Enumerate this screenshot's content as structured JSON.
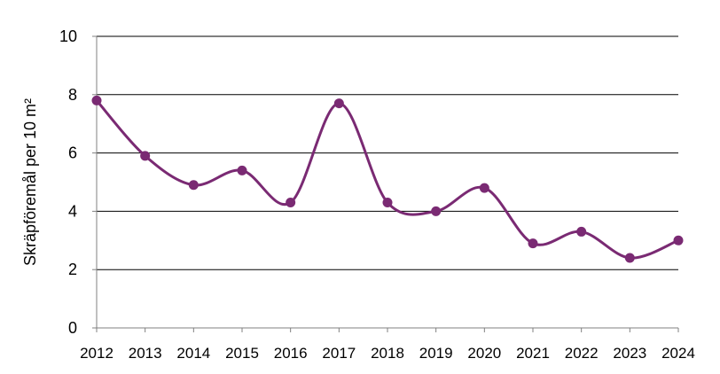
{
  "chart_data": {
    "type": "line",
    "smooth": true,
    "title": "",
    "xlabel": "",
    "ylabel": "Skräpföremål per 10 m²",
    "x": [
      "2012",
      "2013",
      "2014",
      "2015",
      "2016",
      "2017",
      "2018",
      "2019",
      "2020",
      "2021",
      "2022",
      "2023",
      "2024"
    ],
    "series": [
      {
        "name": "",
        "values": [
          7.8,
          5.9,
          4.9,
          5.4,
          4.3,
          7.7,
          4.3,
          4.0,
          4.8,
          2.9,
          3.3,
          2.4,
          3.0
        ]
      }
    ],
    "ylim": [
      0,
      10
    ],
    "yticks": [
      "0",
      "2",
      "4",
      "6",
      "8",
      "10"
    ],
    "grid": "horizontal",
    "legend": "none",
    "colors": {
      "series": "#7a2a73",
      "grid": "#000000",
      "axis": "#808080"
    }
  }
}
